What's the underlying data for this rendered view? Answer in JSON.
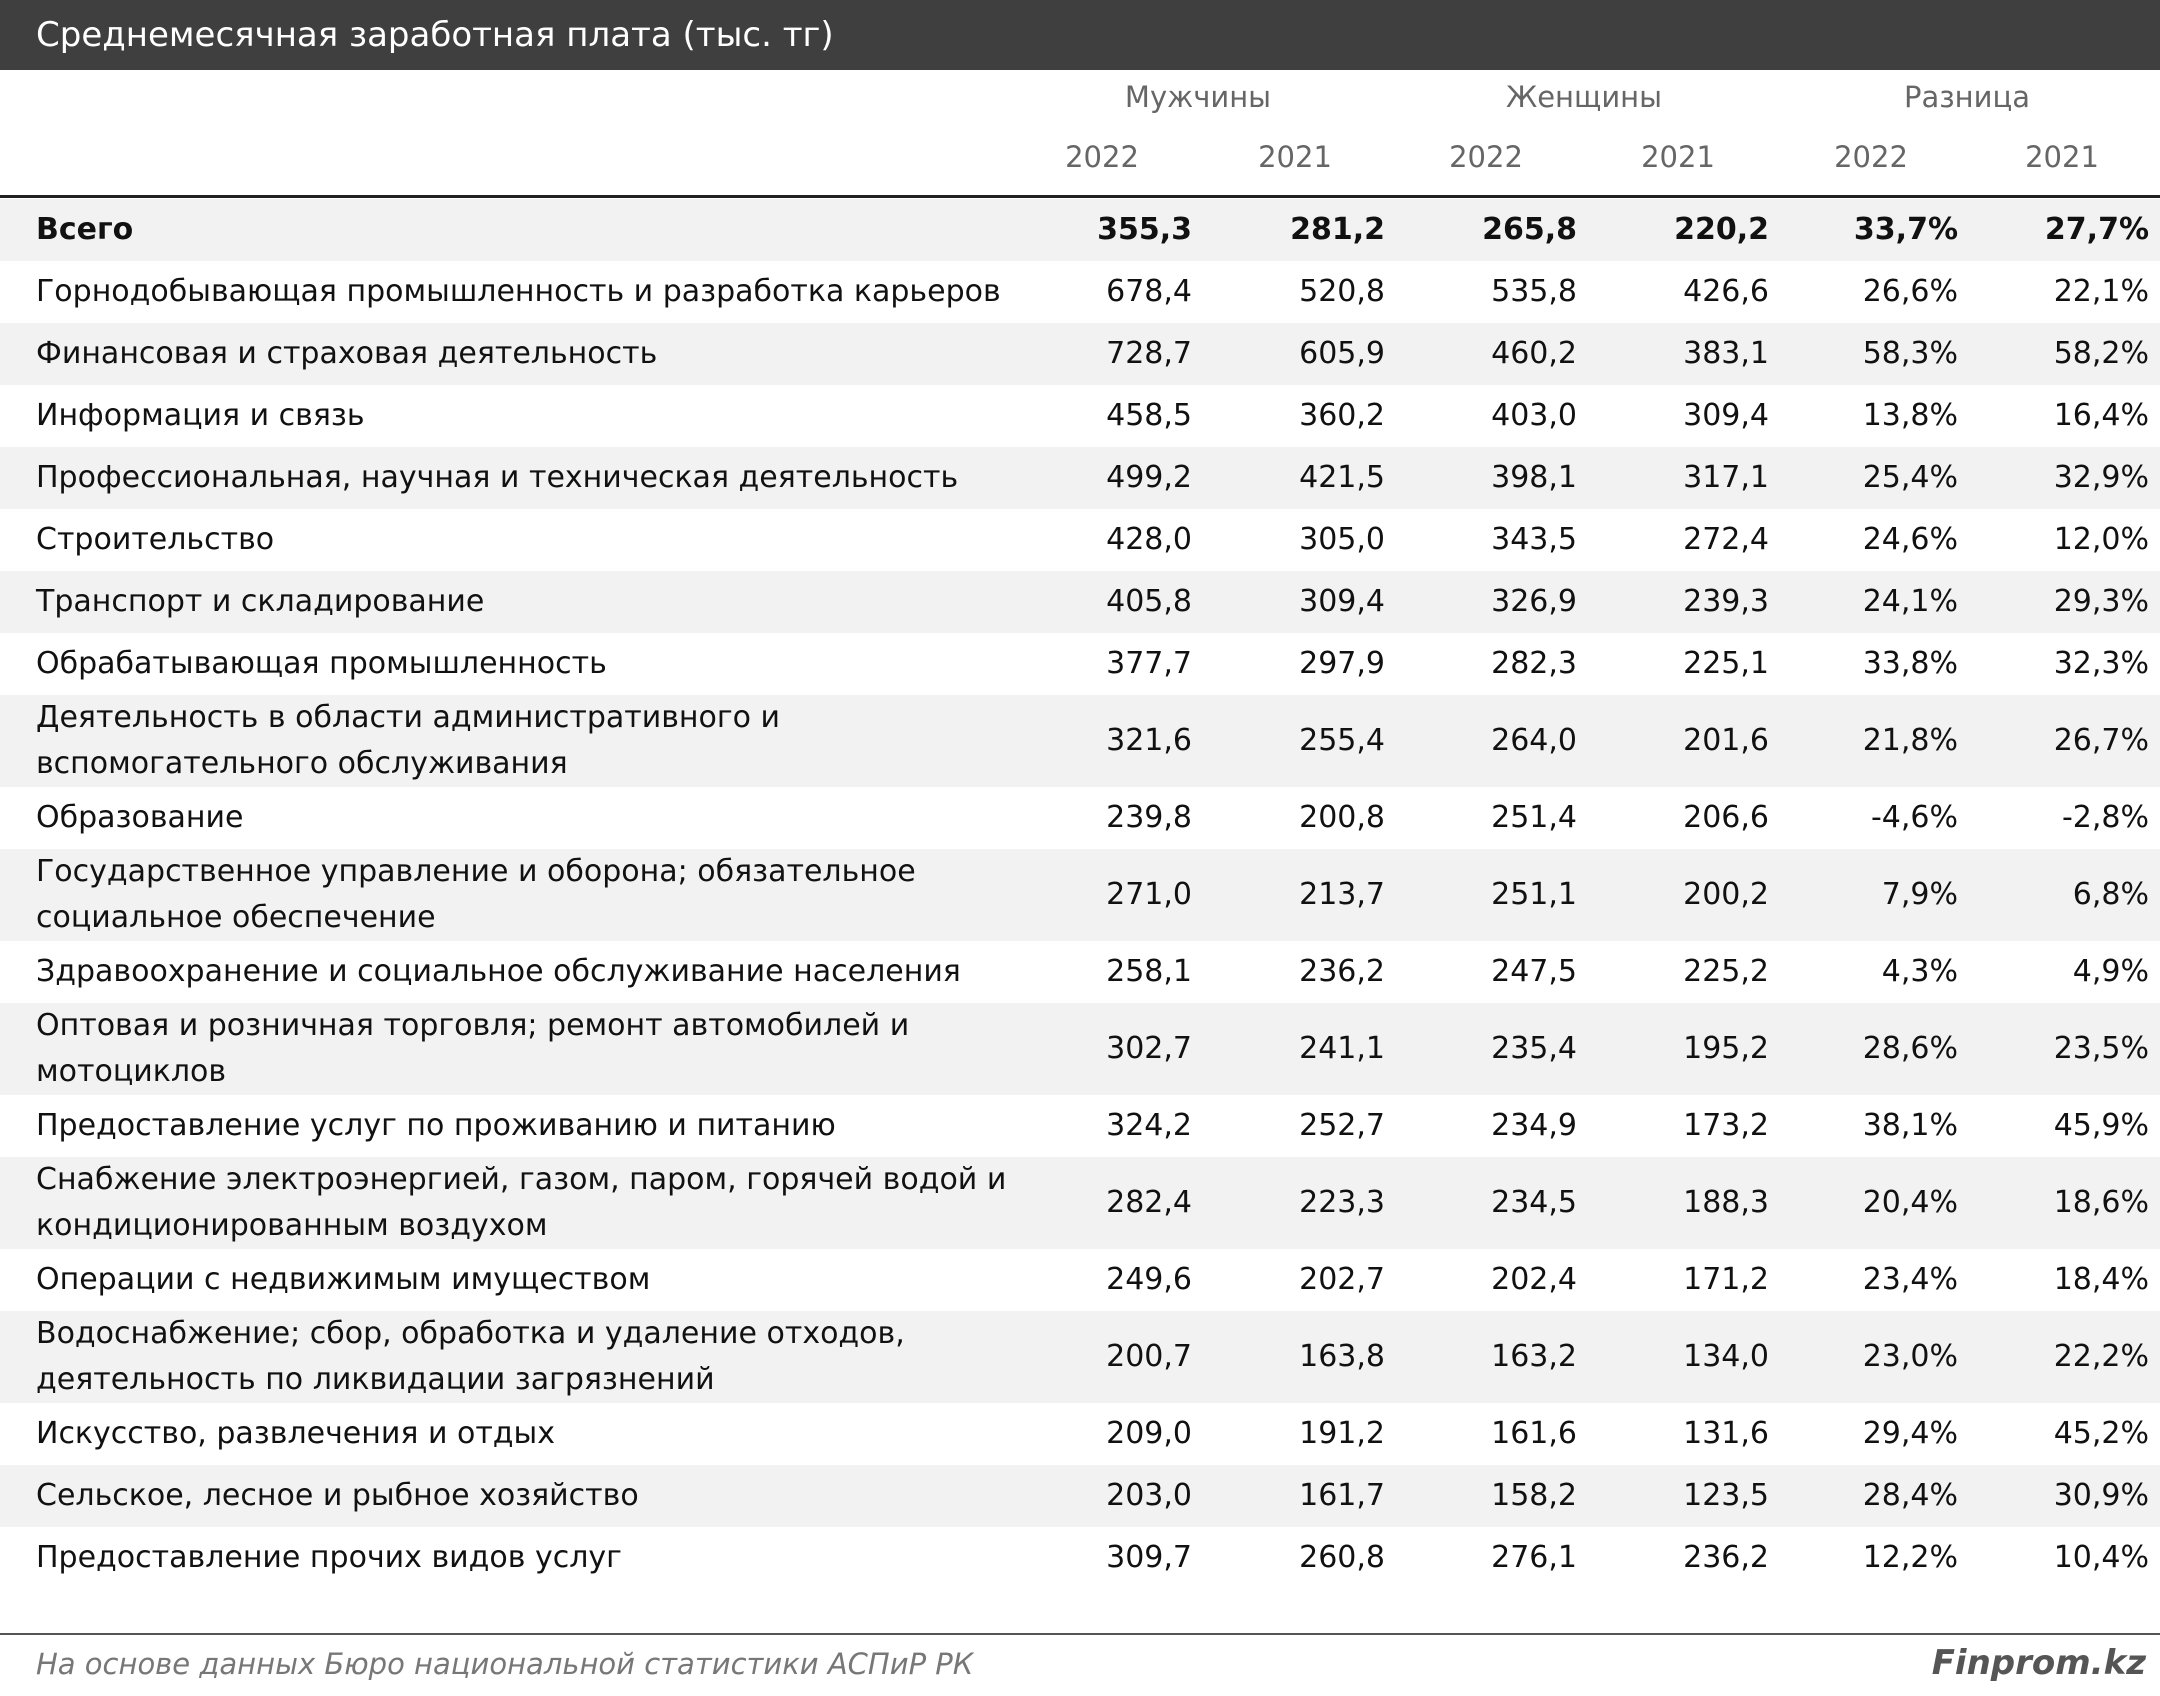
{
  "header": {
    "title": "Среднемесячная заработная плата (тыс. тг)"
  },
  "table": {
    "groups": [
      "Мужчины",
      "Женщины",
      "Разница"
    ],
    "years": [
      "2022",
      "2021",
      "2022",
      "2021",
      "2022",
      "2021"
    ],
    "rows": [
      {
        "label": "Всего",
        "values": [
          "355,3",
          "281,2",
          "265,8",
          "220,2",
          "33,7%",
          "27,7%"
        ]
      },
      {
        "label": "Горнодобывающая промышленность и разработка карьеров",
        "values": [
          "678,4",
          "520,8",
          "535,8",
          "426,6",
          "26,6%",
          "22,1%"
        ]
      },
      {
        "label": "Финансовая и страховая деятельность",
        "values": [
          "728,7",
          "605,9",
          "460,2",
          "383,1",
          "58,3%",
          "58,2%"
        ]
      },
      {
        "label": "Информация и связь",
        "values": [
          "458,5",
          "360,2",
          "403,0",
          "309,4",
          "13,8%",
          "16,4%"
        ]
      },
      {
        "label": "Профессиональная, научная и техническая деятельность",
        "values": [
          "499,2",
          "421,5",
          "398,1",
          "317,1",
          "25,4%",
          "32,9%"
        ]
      },
      {
        "label": "Строительство",
        "values": [
          "428,0",
          "305,0",
          "343,5",
          "272,4",
          "24,6%",
          "12,0%"
        ]
      },
      {
        "label": "Транспорт и складирование",
        "values": [
          "405,8",
          "309,4",
          "326,9",
          "239,3",
          "24,1%",
          "29,3%"
        ]
      },
      {
        "label": "Обрабатывающая промышленность",
        "values": [
          "377,7",
          "297,9",
          "282,3",
          "225,1",
          "33,8%",
          "32,3%"
        ]
      },
      {
        "label": "Деятельность в области административного и вспомогательного обслуживания",
        "values": [
          "321,6",
          "255,4",
          "264,0",
          "201,6",
          "21,8%",
          "26,7%"
        ]
      },
      {
        "label": "Образование",
        "values": [
          "239,8",
          "200,8",
          "251,4",
          "206,6",
          "-4,6%",
          "-2,8%"
        ]
      },
      {
        "label": "Государственное управление и оборона; обязательное социальное обеспечение",
        "values": [
          "271,0",
          "213,7",
          "251,1",
          "200,2",
          "7,9%",
          "6,8%"
        ]
      },
      {
        "label": "Здравоохранение и социальное обслуживание населения",
        "values": [
          "258,1",
          "236,2",
          "247,5",
          "225,2",
          "4,3%",
          "4,9%"
        ]
      },
      {
        "label": "Оптовая и розничная торговля; ремонт автомобилей и мотоциклов",
        "values": [
          "302,7",
          "241,1",
          "235,4",
          "195,2",
          "28,6%",
          "23,5%"
        ]
      },
      {
        "label": "Предоставление услуг по проживанию и питанию",
        "values": [
          "324,2",
          "252,7",
          "234,9",
          "173,2",
          "38,1%",
          "45,9%"
        ]
      },
      {
        "label": "Снабжение электроэнергией, газом, паром, горячей водой и кондиционированным воздухом",
        "values": [
          "282,4",
          "223,3",
          "234,5",
          "188,3",
          "20,4%",
          "18,6%"
        ]
      },
      {
        "label": "Операции с недвижимым имуществом",
        "values": [
          "249,6",
          "202,7",
          "202,4",
          "171,2",
          "23,4%",
          "18,4%"
        ]
      },
      {
        "label": "Водоснабжение; сбор, обработка и удаление отходов, деятельность по ликвидации загрязнений",
        "values": [
          "200,7",
          "163,8",
          "163,2",
          "134,0",
          "23,0%",
          "22,2%"
        ]
      },
      {
        "label": "Искусство, развлечения и отдых",
        "values": [
          "209,0",
          "191,2",
          "161,6",
          "131,6",
          "29,4%",
          "45,2%"
        ]
      },
      {
        "label": "Сельское, лесное и рыбное хозяйство",
        "values": [
          "203,0",
          "161,7",
          "158,2",
          "123,5",
          "28,4%",
          "30,9%"
        ]
      },
      {
        "label": "Предоставление прочих видов услуг",
        "values": [
          "309,7",
          "260,8",
          "276,1",
          "236,2",
          "12,2%",
          "10,4%"
        ]
      }
    ]
  },
  "footer": {
    "source": "На основе данных Бюро национальной статистики АСПиР РК",
    "brand": "Finprom.kz"
  }
}
